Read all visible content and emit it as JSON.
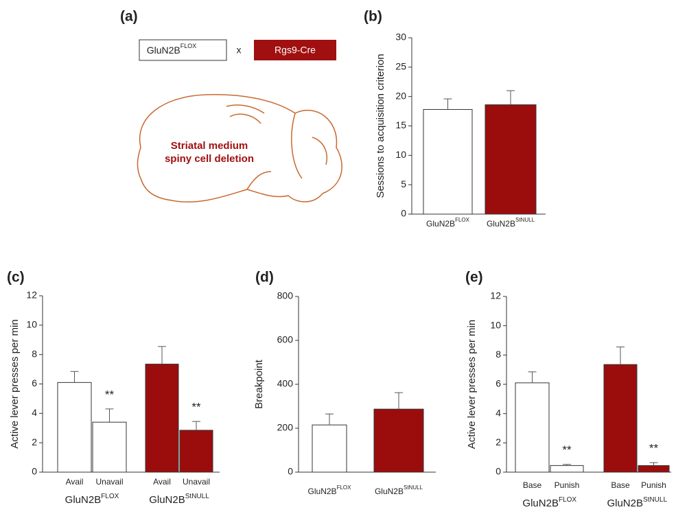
{
  "diagram": {
    "panel": "(a)",
    "box1": {
      "text": "GluN2B",
      "sup": "FLOX"
    },
    "cross": "x",
    "box2": "Rgs9-Cre",
    "caption": [
      "Striatal medium",
      "spiny cell deletion"
    ]
  },
  "chart_data": [
    {
      "type": "bar",
      "panel": "(b)",
      "y_label": "Sessions to acquisition criterion",
      "categories": [
        "GluN2B",
        "GluN2B"
      ],
      "category_superscripts": [
        "FLOX",
        "StNULL"
      ],
      "values": [
        17.8,
        18.6
      ],
      "errors": [
        1.8,
        2.4
      ],
      "colors": [
        "#ffffff",
        "#9b0d0d"
      ],
      "ylim": [
        0,
        30
      ],
      "yticks": [
        0,
        5,
        10,
        15,
        20,
        25,
        30
      ]
    },
    {
      "type": "grouped_bar",
      "panel": "(c)",
      "y_label": "Active lever presses per min",
      "groups": [
        {
          "name": "GluN2B",
          "sup": "FLOX",
          "color": "#ffffff",
          "categories": [
            "Avail",
            "Unavail"
          ],
          "values": [
            6.1,
            3.4
          ],
          "errors": [
            0.75,
            0.9
          ],
          "annotations": [
            {
              "index": 1,
              "text": "**"
            }
          ]
        },
        {
          "name": "GluN2B",
          "sup": "StNULL",
          "color": "#9b0d0d",
          "categories": [
            "Avail",
            "Unavail"
          ],
          "values": [
            7.35,
            2.85
          ],
          "errors": [
            1.2,
            0.6
          ],
          "annotations": [
            {
              "index": 1,
              "text": "**"
            }
          ]
        }
      ],
      "ylim": [
        0,
        12
      ],
      "yticks": [
        0,
        2,
        4,
        6,
        8,
        10,
        12
      ]
    },
    {
      "type": "bar",
      "panel": "(d)",
      "y_label": "Breakpoint",
      "categories": [
        "GluN2B",
        "GluN2B"
      ],
      "category_superscripts": [
        "FLOX",
        "StNULL"
      ],
      "values": [
        215,
        287
      ],
      "errors": [
        50,
        75
      ],
      "colors": [
        "#ffffff",
        "#9b0d0d"
      ],
      "ylim": [
        0,
        800
      ],
      "yticks": [
        0,
        200,
        400,
        600,
        800
      ]
    },
    {
      "type": "grouped_bar",
      "panel": "(e)",
      "y_label": "Active lever presses per min",
      "groups": [
        {
          "name": "GluN2B",
          "sup": "FLOX",
          "color": "#ffffff",
          "categories": [
            "Base",
            "Punish"
          ],
          "values": [
            6.1,
            0.45
          ],
          "errors": [
            0.75,
            0.08
          ],
          "annotations": [
            {
              "index": 1,
              "text": "**"
            }
          ]
        },
        {
          "name": "GluN2B",
          "sup": "StNULL",
          "color": "#9b0d0d",
          "categories": [
            "Base",
            "Punish"
          ],
          "values": [
            7.35,
            0.45
          ],
          "errors": [
            1.2,
            0.2
          ],
          "annotations": [
            {
              "index": 1,
              "text": "**"
            }
          ]
        }
      ],
      "ylim": [
        0,
        12
      ],
      "yticks": [
        0,
        2,
        4,
        6,
        8,
        10,
        12
      ]
    }
  ]
}
